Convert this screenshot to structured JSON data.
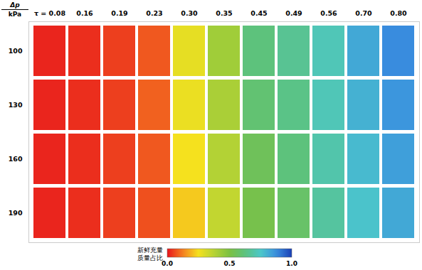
{
  "chart_data": {
    "type": "heatmap",
    "y_label": {
      "numerator": "Δp",
      "denominator": "kPa"
    },
    "x": [
      {
        "value": 0.08,
        "label": "τ = 0.08"
      },
      {
        "value": 0.16,
        "label": "0.16"
      },
      {
        "value": 0.19,
        "label": "0.19"
      },
      {
        "value": 0.23,
        "label": "0.23"
      },
      {
        "value": 0.3,
        "label": "0.30"
      },
      {
        "value": 0.35,
        "label": "0.35"
      },
      {
        "value": 0.45,
        "label": "0.45"
      },
      {
        "value": 0.49,
        "label": "0.49"
      },
      {
        "value": 0.56,
        "label": "0.56"
      },
      {
        "value": 0.7,
        "label": "0.70"
      },
      {
        "value": 0.8,
        "label": "0.80"
      }
    ],
    "y": [
      100,
      130,
      160,
      190
    ],
    "values": [
      [
        0.02,
        0.03,
        0.05,
        0.08,
        0.28,
        0.42,
        0.62,
        0.66,
        0.72,
        0.82,
        0.88
      ],
      [
        0.02,
        0.03,
        0.05,
        0.09,
        0.27,
        0.4,
        0.6,
        0.64,
        0.72,
        0.8,
        0.86
      ],
      [
        0.02,
        0.03,
        0.05,
        0.08,
        0.25,
        0.38,
        0.55,
        0.62,
        0.7,
        0.78,
        0.84
      ],
      [
        0.02,
        0.03,
        0.05,
        0.07,
        0.22,
        0.35,
        0.52,
        0.58,
        0.68,
        0.76,
        0.82
      ]
    ],
    "colorbar": {
      "label": "新鲜充量质量占比",
      "range": [
        0,
        1
      ],
      "ticks": [
        {
          "value": 0,
          "label": "0.0"
        },
        {
          "value": 0.5,
          "label": "0.5"
        },
        {
          "value": 1,
          "label": "1.0"
        }
      ],
      "colors": [
        "#e8141c",
        "#f57f20",
        "#f5e11e",
        "#b5d334",
        "#7cc142",
        "#5cc27e",
        "#4cc7c9",
        "#3a8fe0",
        "#1a3fb5"
      ]
    }
  }
}
